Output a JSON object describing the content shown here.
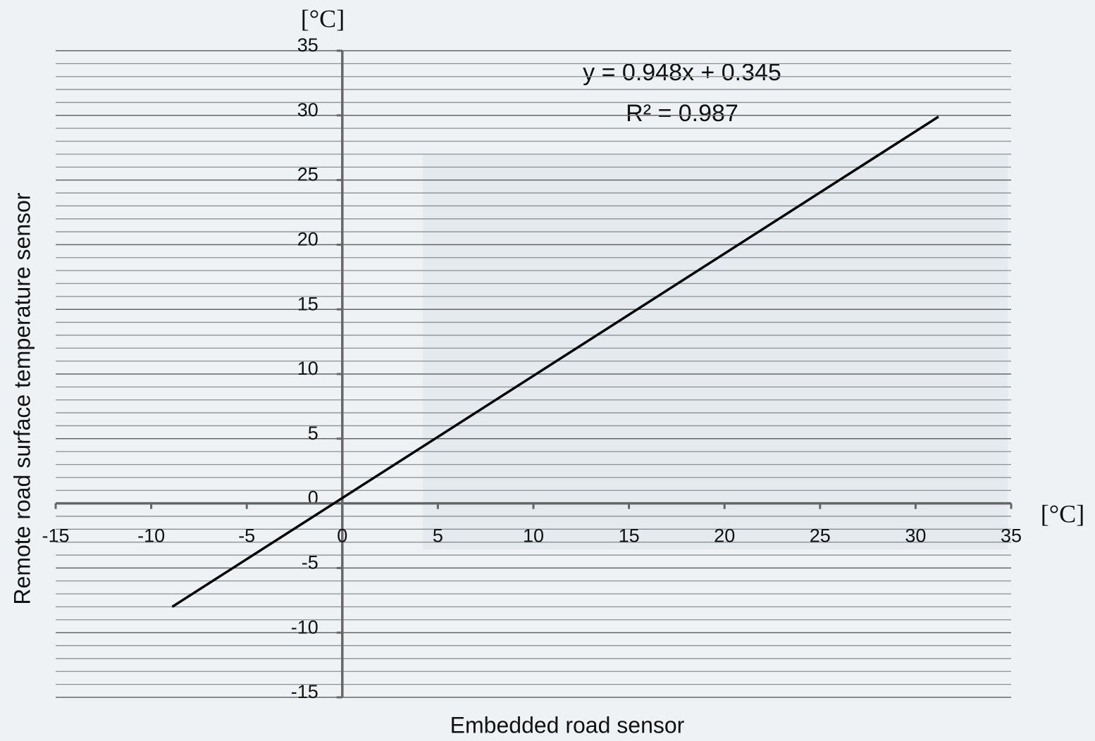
{
  "chart_data": {
    "type": "line",
    "x_label": "Embedded road sensor",
    "y_label": "Remote road surface temperature sensor",
    "x_unit": "[°C]",
    "y_unit": "[°C]",
    "annotations": [
      "y = 0.948x + 0.345",
      "R² = 0.987"
    ],
    "x": [
      -8.9,
      31.2
    ],
    "series": [
      {
        "color": "#000000",
        "values": [
          -8.0,
          29.9
        ]
      }
    ],
    "xlim": [
      -15,
      35
    ],
    "xticks": [
      -15,
      -10,
      -5,
      0,
      5,
      10,
      15,
      20,
      25,
      30,
      35
    ],
    "ylim": [
      -15,
      35
    ],
    "yticks": [
      -15,
      -10,
      -5,
      0,
      5,
      10,
      15,
      20,
      25,
      30,
      35
    ],
    "grid": true,
    "minor_grid": true
  }
}
